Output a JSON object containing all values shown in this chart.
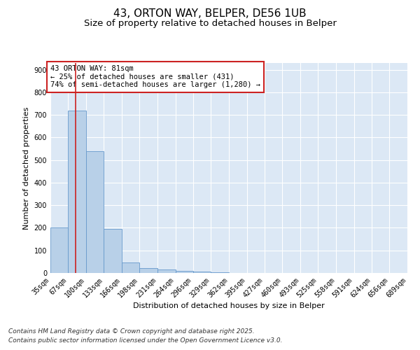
{
  "title1": "43, ORTON WAY, BELPER, DE56 1UB",
  "title2": "Size of property relative to detached houses in Belper",
  "xlabel": "Distribution of detached houses by size in Belper",
  "ylabel": "Number of detached properties",
  "bin_edges": [
    35,
    67,
    100,
    133,
    166,
    198,
    231,
    264,
    296,
    329,
    362,
    395,
    427,
    460,
    493,
    525,
    558,
    591,
    624,
    656,
    689
  ],
  "bar_heights": [
    200,
    720,
    540,
    195,
    47,
    22,
    14,
    8,
    7,
    2,
    1,
    1,
    1,
    1,
    0,
    0,
    0,
    0,
    0,
    0
  ],
  "bar_color": "#b8d0e8",
  "bar_edge_color": "#6699cc",
  "vline_x": 81,
  "vline_color": "#cc2222",
  "annotation_text": "43 ORTON WAY: 81sqm\n← 25% of detached houses are smaller (431)\n74% of semi-detached houses are larger (1,280) →",
  "annotation_box_color": "#cc2222",
  "ylim": [
    0,
    930
  ],
  "yticks": [
    0,
    100,
    200,
    300,
    400,
    500,
    600,
    700,
    800,
    900
  ],
  "background_color": "#dce8f5",
  "grid_color": "#ffffff",
  "footer1": "Contains HM Land Registry data © Crown copyright and database right 2025.",
  "footer2": "Contains public sector information licensed under the Open Government Licence v3.0.",
  "title_fontsize": 11,
  "subtitle_fontsize": 9.5,
  "axis_label_fontsize": 8,
  "tick_fontsize": 7,
  "annotation_fontsize": 7.5,
  "footer_fontsize": 6.5
}
